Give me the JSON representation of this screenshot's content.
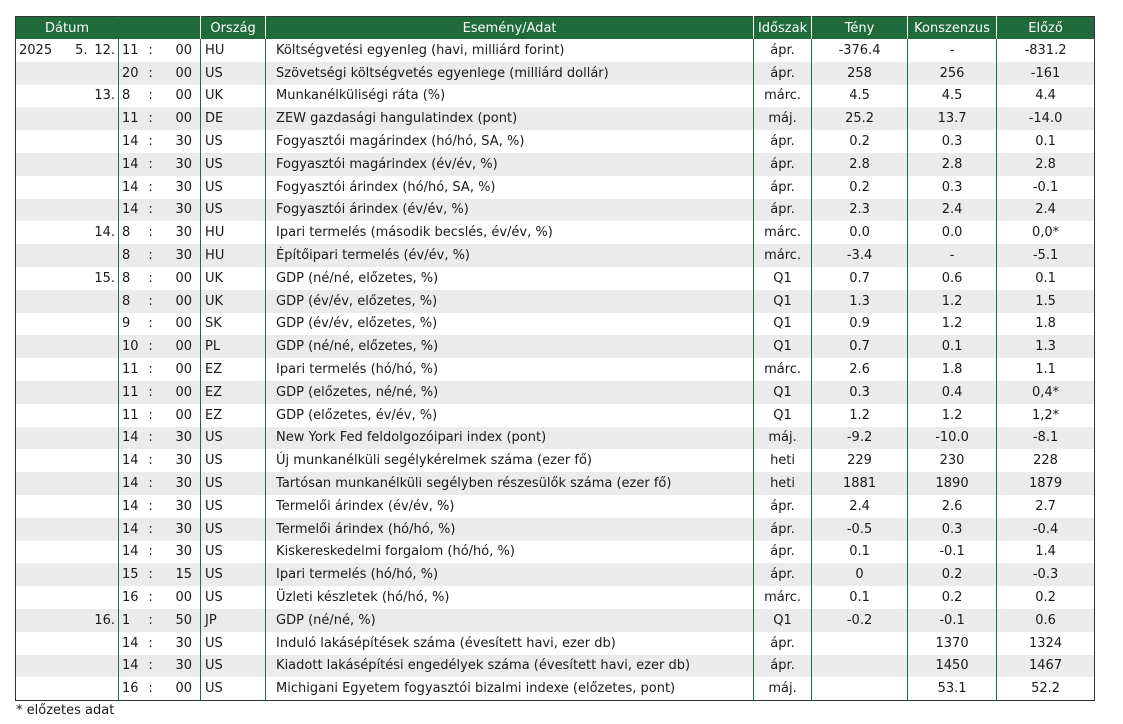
{
  "headers": {
    "date": "Dátum",
    "country": "Ország",
    "event": "Esemény/Adat",
    "period": "Időszak",
    "actual": "Tény",
    "consensus": "Konszenzus",
    "previous": "Előző"
  },
  "rows": [
    {
      "year": "2025",
      "month": "5.",
      "day": "12.",
      "hour": "11",
      "min": "00",
      "country": "HU",
      "event": "Költségvetési egyenleg (havi, milliárd forint)",
      "period": "ápr.",
      "actual": "-376.4",
      "consensus": "-",
      "previous": "-831.2"
    },
    {
      "year": "",
      "month": "",
      "day": "",
      "hour": "20",
      "min": "00",
      "country": "US",
      "event": "Szövetségi költségvetés egyenlege (milliárd dollár)",
      "period": "ápr.",
      "actual": "258",
      "consensus": "256",
      "previous": "-161"
    },
    {
      "year": "",
      "month": "",
      "day": "13.",
      "hour": "8",
      "min": "00",
      "country": "UK",
      "event": "Munkanélküliségi ráta (%)",
      "period": "márc.",
      "actual": "4.5",
      "consensus": "4.5",
      "previous": "4.4"
    },
    {
      "year": "",
      "month": "",
      "day": "",
      "hour": "11",
      "min": "00",
      "country": "DE",
      "event": "ZEW gazdasági hangulatindex (pont)",
      "period": "máj.",
      "actual": "25.2",
      "consensus": "13.7",
      "previous": "-14.0"
    },
    {
      "year": "",
      "month": "",
      "day": "",
      "hour": "14",
      "min": "30",
      "country": "US",
      "event": "Fogyasztói magárindex (hó/hó, SA, %)",
      "period": "ápr.",
      "actual": "0.2",
      "consensus": "0.3",
      "previous": "0.1"
    },
    {
      "year": "",
      "month": "",
      "day": "",
      "hour": "14",
      "min": "30",
      "country": "US",
      "event": "Fogyasztói magárindex (év/év, %)",
      "period": "ápr.",
      "actual": "2.8",
      "consensus": "2.8",
      "previous": "2.8"
    },
    {
      "year": "",
      "month": "",
      "day": "",
      "hour": "14",
      "min": "30",
      "country": "US",
      "event": "Fogyasztói árindex (hó/hó, SA, %)",
      "period": "ápr.",
      "actual": "0.2",
      "consensus": "0.3",
      "previous": "-0.1"
    },
    {
      "year": "",
      "month": "",
      "day": "",
      "hour": "14",
      "min": "30",
      "country": "US",
      "event": "Fogyasztói árindex (év/év, %)",
      "period": "ápr.",
      "actual": "2.3",
      "consensus": "2.4",
      "previous": "2.4"
    },
    {
      "year": "",
      "month": "",
      "day": "14.",
      "hour": "8",
      "min": "30",
      "country": "HU",
      "event": "Ipari termelés (második becslés, év/év, %)",
      "period": "márc.",
      "actual": "0.0",
      "consensus": "0.0",
      "previous": "0,0*"
    },
    {
      "year": "",
      "month": "",
      "day": "",
      "hour": "8",
      "min": "30",
      "country": "HU",
      "event": "Építőipari termelés (év/év, %)",
      "period": "márc.",
      "actual": "-3.4",
      "consensus": "-",
      "previous": "-5.1"
    },
    {
      "year": "",
      "month": "",
      "day": "15.",
      "hour": "8",
      "min": "00",
      "country": "UK",
      "event": "GDP (né/né, előzetes, %)",
      "period": "Q1",
      "actual": "0.7",
      "consensus": "0.6",
      "previous": "0.1"
    },
    {
      "year": "",
      "month": "",
      "day": "",
      "hour": "8",
      "min": "00",
      "country": "UK",
      "event": "GDP (év/év, előzetes, %)",
      "period": "Q1",
      "actual": "1.3",
      "consensus": "1.2",
      "previous": "1.5"
    },
    {
      "year": "",
      "month": "",
      "day": "",
      "hour": "9",
      "min": "00",
      "country": "SK",
      "event": "GDP (év/év, előzetes, %)",
      "period": "Q1",
      "actual": "0.9",
      "consensus": "1.2",
      "previous": "1.8"
    },
    {
      "year": "",
      "month": "",
      "day": "",
      "hour": "10",
      "min": "00",
      "country": "PL",
      "event": "GDP (né/né, előzetes, %)",
      "period": "Q1",
      "actual": "0.7",
      "consensus": "0.1",
      "previous": "1.3"
    },
    {
      "year": "",
      "month": "",
      "day": "",
      "hour": "11",
      "min": "00",
      "country": "EZ",
      "event": "Ipari termelés (hó/hó, %)",
      "period": "márc.",
      "actual": "2.6",
      "consensus": "1.8",
      "previous": "1.1"
    },
    {
      "year": "",
      "month": "",
      "day": "",
      "hour": "11",
      "min": "00",
      "country": "EZ",
      "event": "GDP (előzetes, né/né, %)",
      "period": "Q1",
      "actual": "0.3",
      "consensus": "0.4",
      "previous": "0,4*"
    },
    {
      "year": "",
      "month": "",
      "day": "",
      "hour": "11",
      "min": "00",
      "country": "EZ",
      "event": "GDP (előzetes, év/év, %)",
      "period": "Q1",
      "actual": "1.2",
      "consensus": "1.2",
      "previous": "1,2*"
    },
    {
      "year": "",
      "month": "",
      "day": "",
      "hour": "14",
      "min": "30",
      "country": "US",
      "event": "New York Fed feldolgozóipari index (pont)",
      "period": "máj.",
      "actual": "-9.2",
      "consensus": "-10.0",
      "previous": "-8.1"
    },
    {
      "year": "",
      "month": "",
      "day": "",
      "hour": "14",
      "min": "30",
      "country": "US",
      "event": "Új munkanélküli segélykérelmek száma (ezer fő)",
      "period": "heti",
      "actual": "229",
      "consensus": "230",
      "previous": "228"
    },
    {
      "year": "",
      "month": "",
      "day": "",
      "hour": "14",
      "min": "30",
      "country": "US",
      "event": "Tartósan munkanélküli segélyben részesülők száma (ezer fő)",
      "period": "heti",
      "actual": "1881",
      "consensus": "1890",
      "previous": "1879"
    },
    {
      "year": "",
      "month": "",
      "day": "",
      "hour": "14",
      "min": "30",
      "country": "US",
      "event": "Termelői árindex (év/év, %)",
      "period": "ápr.",
      "actual": "2.4",
      "consensus": "2.6",
      "previous": "2.7"
    },
    {
      "year": "",
      "month": "",
      "day": "",
      "hour": "14",
      "min": "30",
      "country": "US",
      "event": "Termelői árindex (hó/hó, %)",
      "period": "ápr.",
      "actual": "-0.5",
      "consensus": "0.3",
      "previous": "-0.4"
    },
    {
      "year": "",
      "month": "",
      "day": "",
      "hour": "14",
      "min": "30",
      "country": "US",
      "event": "Kiskereskedelmi forgalom (hó/hó, %)",
      "period": "ápr.",
      "actual": "0.1",
      "consensus": "-0.1",
      "previous": "1.4"
    },
    {
      "year": "",
      "month": "",
      "day": "",
      "hour": "15",
      "min": "15",
      "country": "US",
      "event": "Ipari termelés (hó/hó, %)",
      "period": "ápr.",
      "actual": "0",
      "consensus": "0.2",
      "previous": "-0.3"
    },
    {
      "year": "",
      "month": "",
      "day": "",
      "hour": "16",
      "min": "00",
      "country": "US",
      "event": "Üzleti készletek (hó/hó, %)",
      "period": "márc.",
      "actual": "0.1",
      "consensus": "0.2",
      "previous": "0.2"
    },
    {
      "year": "",
      "month": "",
      "day": "16.",
      "hour": "1",
      "min": "50",
      "country": "JP",
      "event": "GDP (né/né, %)",
      "period": "Q1",
      "actual": "-0.2",
      "consensus": "-0.1",
      "previous": "0.6"
    },
    {
      "year": "",
      "month": "",
      "day": "",
      "hour": "14",
      "min": "30",
      "country": "US",
      "event": "Induló lakásépítések száma (évesített havi, ezer db)",
      "period": "ápr.",
      "actual": "",
      "consensus": "1370",
      "previous": "1324"
    },
    {
      "year": "",
      "month": "",
      "day": "",
      "hour": "14",
      "min": "30",
      "country": "US",
      "event": "Kiadott lakásépítési engedélyek száma (évesített havi, ezer db)",
      "period": "ápr.",
      "actual": "",
      "consensus": "1450",
      "previous": "1467"
    },
    {
      "year": "",
      "month": "",
      "day": "",
      "hour": "16",
      "min": "00",
      "country": "US",
      "event": "Michigani Egyetem fogyasztói bizalmi indexe (előzetes, pont)",
      "period": "máj.",
      "actual": "",
      "consensus": "53.1",
      "previous": "52.2"
    }
  ],
  "time_sep": ":",
  "footnote": "* előzetes adat",
  "colors": {
    "header_bg": "#1f6b3b",
    "header_text": "#ffffff",
    "stripe": "#ebebeb",
    "col_rule": "#1f6b3b"
  }
}
